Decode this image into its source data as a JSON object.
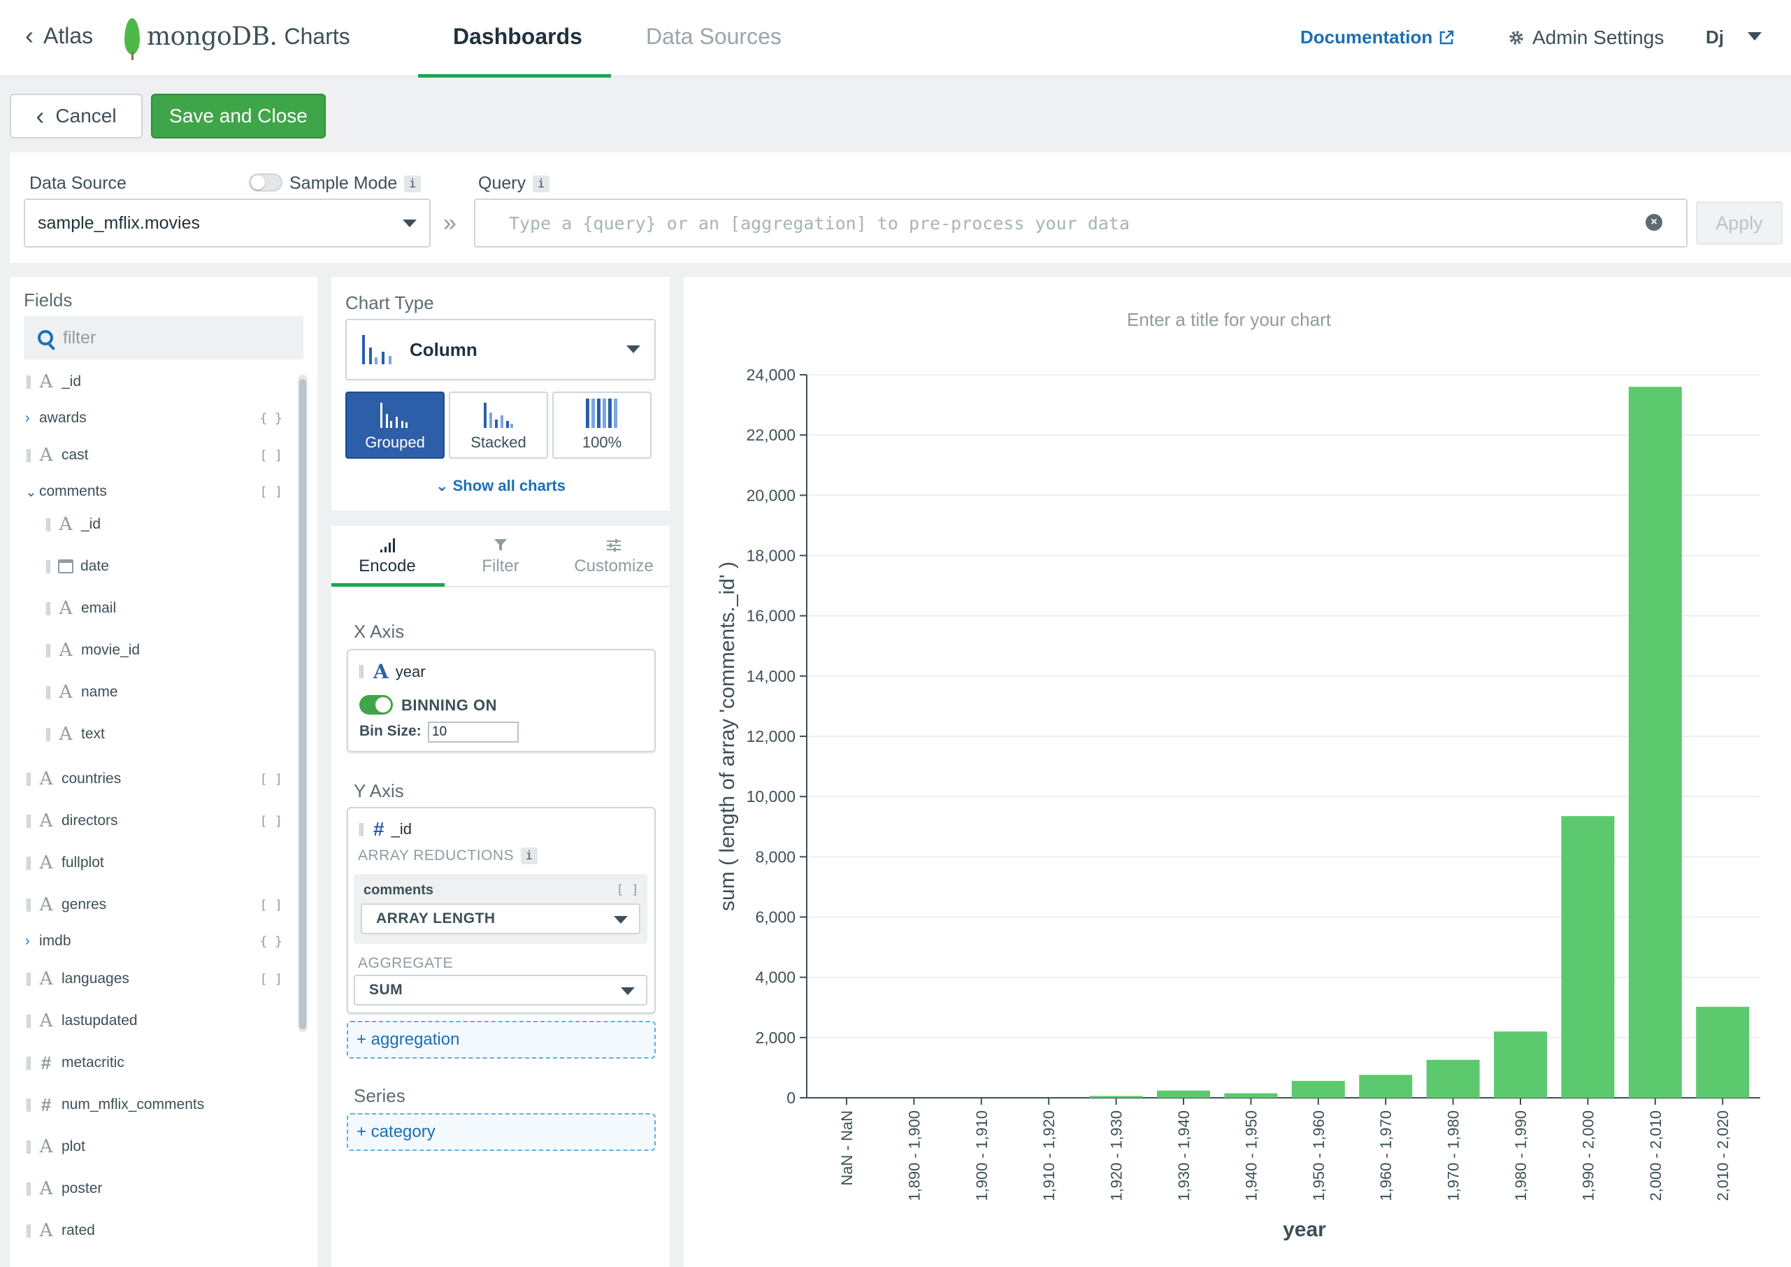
{
  "topnav": {
    "back_label": "Atlas",
    "logo_text": "mongoDB.",
    "logo_sub": "Charts",
    "tabs": [
      {
        "label": "Dashboards",
        "active": true
      },
      {
        "label": "Data Sources",
        "active": false
      }
    ],
    "documentation_label": "Documentation",
    "admin_label": "Admin Settings",
    "user_initials": "Dj"
  },
  "actions": {
    "cancel_label": "Cancel",
    "save_label": "Save and Close"
  },
  "data_source": {
    "label": "Data Source",
    "sample_mode_label": "Sample Mode",
    "selected": "sample_mflix.movies",
    "query_label": "Query",
    "query_placeholder": "Type a {query} or an [aggregation] to pre-process your data",
    "apply_label": "Apply",
    "info_glyph": "i"
  },
  "fields": {
    "title": "Fields",
    "filter_placeholder": "filter",
    "items": [
      {
        "name": "_id",
        "type": "A",
        "badge": "",
        "indent": 0,
        "expand": ""
      },
      {
        "name": "awards",
        "type": "",
        "badge": "{ }",
        "indent": 0,
        "expand": "›"
      },
      {
        "name": "cast",
        "type": "A",
        "badge": "[ ]",
        "indent": 0,
        "expand": ""
      },
      {
        "name": "comments",
        "type": "",
        "badge": "[ ]",
        "indent": 0,
        "expand": "⌄"
      },
      {
        "name": "_id",
        "type": "A",
        "badge": "",
        "indent": 1,
        "expand": ""
      },
      {
        "name": "date",
        "type": "cal",
        "badge": "",
        "indent": 1,
        "expand": ""
      },
      {
        "name": "email",
        "type": "A",
        "badge": "",
        "indent": 1,
        "expand": ""
      },
      {
        "name": "movie_id",
        "type": "A",
        "badge": "",
        "indent": 1,
        "expand": ""
      },
      {
        "name": "name",
        "type": "A",
        "badge": "",
        "indent": 1,
        "expand": ""
      },
      {
        "name": "text",
        "type": "A",
        "badge": "",
        "indent": 1,
        "expand": ""
      },
      {
        "name": "countries",
        "type": "A",
        "badge": "[ ]",
        "indent": 0,
        "expand": ""
      },
      {
        "name": "directors",
        "type": "A",
        "badge": "[ ]",
        "indent": 0,
        "expand": ""
      },
      {
        "name": "fullplot",
        "type": "A",
        "badge": "",
        "indent": 0,
        "expand": ""
      },
      {
        "name": "genres",
        "type": "A",
        "badge": "[ ]",
        "indent": 0,
        "expand": ""
      },
      {
        "name": "imdb",
        "type": "",
        "badge": "{ }",
        "indent": 0,
        "expand": "›"
      },
      {
        "name": "languages",
        "type": "A",
        "badge": "[ ]",
        "indent": 0,
        "expand": ""
      },
      {
        "name": "lastupdated",
        "type": "A",
        "badge": "",
        "indent": 0,
        "expand": ""
      },
      {
        "name": "metacritic",
        "type": "#",
        "badge": "",
        "indent": 0,
        "expand": ""
      },
      {
        "name": "num_mflix_comments",
        "type": "#",
        "badge": "",
        "indent": 0,
        "expand": ""
      },
      {
        "name": "plot",
        "type": "A",
        "badge": "",
        "indent": 0,
        "expand": ""
      },
      {
        "name": "poster",
        "type": "A",
        "badge": "",
        "indent": 0,
        "expand": ""
      },
      {
        "name": "rated",
        "type": "A",
        "badge": "",
        "indent": 0,
        "expand": ""
      }
    ]
  },
  "chart_type": {
    "title": "Chart Type",
    "selected": "Column",
    "subtypes": [
      {
        "label": "Grouped",
        "active": true
      },
      {
        "label": "Stacked",
        "active": false
      },
      {
        "label": "100%",
        "active": false
      }
    ],
    "show_all_label": "Show all charts"
  },
  "encode": {
    "tabs": [
      {
        "label": "Encode",
        "active": true
      },
      {
        "label": "Filter",
        "active": false
      },
      {
        "label": "Customize",
        "active": false
      }
    ],
    "x_axis": {
      "label": "X Axis",
      "field": "year",
      "field_type": "A",
      "binning_label": "BINNING ON",
      "bin_size_label": "Bin Size:",
      "bin_size_value": "10"
    },
    "y_axis": {
      "label": "Y Axis",
      "field": "_id",
      "field_type": "#",
      "array_reductions_label": "ARRAY REDUCTIONS",
      "reduction_field": "comments",
      "reduction_field_badge": "[ ]",
      "reduction_value": "ARRAY LENGTH",
      "aggregate_label": "AGGREGATE",
      "aggregate_value": "SUM",
      "add_aggregation": "+ aggregation"
    },
    "series": {
      "label": "Series",
      "add_category": "+ category"
    }
  },
  "chart_data": {
    "type": "bar",
    "title": "Enter a title for your chart",
    "xlabel": "year",
    "ylabel": "sum ( length of array 'comments._id' )",
    "ylim": [
      0,
      24000
    ],
    "yticks": [
      0,
      2000,
      4000,
      6000,
      8000,
      10000,
      12000,
      14000,
      16000,
      18000,
      20000,
      22000,
      24000
    ],
    "categories": [
      "NaN - NaN",
      "1,890 - 1,900",
      "1,900 - 1,910",
      "1,910 - 1,920",
      "1,920 - 1,930",
      "1,930 - 1,940",
      "1,940 - 1,950",
      "1,950 - 1,960",
      "1,960 - 1,970",
      "1,970 - 1,980",
      "1,980 - 1,990",
      "1,990 - 2,000",
      "2,000 - 2,010",
      "2,010 - 2,020"
    ],
    "values": [
      0,
      0,
      0,
      0,
      60,
      240,
      150,
      560,
      760,
      1260,
      2200,
      9350,
      23600,
      3020
    ],
    "bar_color": "#5cc96e",
    "grid": true
  }
}
